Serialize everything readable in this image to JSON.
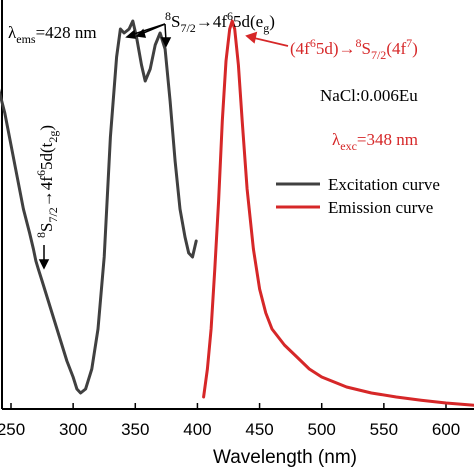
{
  "chart_data": {
    "type": "line",
    "xlabel": "Wavelength (nm)",
    "xlim": [
      240,
      630
    ],
    "ylim": [
      0,
      1.0
    ],
    "grid": false,
    "legend_position": "center-right",
    "x_ticks": [
      "250",
      "300",
      "350",
      "400",
      "450",
      "500",
      "550",
      "600"
    ],
    "series": [
      {
        "name": "Excitation curve",
        "color": "#404040",
        "points": [
          [
            240,
            0.8
          ],
          [
            245,
            0.74
          ],
          [
            250,
            0.66
          ],
          [
            255,
            0.58
          ],
          [
            260,
            0.5
          ],
          [
            265,
            0.44
          ],
          [
            268,
            0.4
          ],
          [
            270,
            0.37
          ],
          [
            272,
            0.35
          ],
          [
            275,
            0.32
          ],
          [
            280,
            0.27
          ],
          [
            285,
            0.22
          ],
          [
            290,
            0.17
          ],
          [
            295,
            0.12
          ],
          [
            300,
            0.08
          ],
          [
            303,
            0.05
          ],
          [
            306,
            0.04
          ],
          [
            310,
            0.05
          ],
          [
            315,
            0.1
          ],
          [
            320,
            0.2
          ],
          [
            325,
            0.38
          ],
          [
            330,
            0.68
          ],
          [
            335,
            0.88
          ],
          [
            338,
            0.95
          ],
          [
            341,
            0.94
          ],
          [
            345,
            0.95
          ],
          [
            348,
            0.97
          ],
          [
            351,
            0.93
          ],
          [
            355,
            0.86
          ],
          [
            358,
            0.82
          ],
          [
            362,
            0.85
          ],
          [
            366,
            0.91
          ],
          [
            370,
            0.94
          ],
          [
            374,
            0.9
          ],
          [
            378,
            0.77
          ],
          [
            382,
            0.62
          ],
          [
            386,
            0.5
          ],
          [
            390,
            0.43
          ],
          [
            393,
            0.39
          ],
          [
            396,
            0.38
          ],
          [
            399,
            0.42
          ]
        ]
      },
      {
        "name": "Emission curve",
        "color": "#d62728",
        "points": [
          [
            405,
            0.03
          ],
          [
            408,
            0.1
          ],
          [
            411,
            0.2
          ],
          [
            414,
            0.35
          ],
          [
            417,
            0.52
          ],
          [
            420,
            0.72
          ],
          [
            423,
            0.87
          ],
          [
            426,
            0.95
          ],
          [
            428,
            0.97
          ],
          [
            430,
            0.95
          ],
          [
            433,
            0.86
          ],
          [
            436,
            0.72
          ],
          [
            440,
            0.55
          ],
          [
            445,
            0.4
          ],
          [
            450,
            0.3
          ],
          [
            455,
            0.24
          ],
          [
            460,
            0.2
          ],
          [
            470,
            0.16
          ],
          [
            480,
            0.13
          ],
          [
            490,
            0.1
          ],
          [
            500,
            0.08
          ],
          [
            520,
            0.055
          ],
          [
            540,
            0.04
          ],
          [
            560,
            0.03
          ],
          [
            580,
            0.022
          ],
          [
            600,
            0.015
          ],
          [
            620,
            0.01
          ],
          [
            630,
            0.008
          ]
        ]
      }
    ]
  },
  "annotations": {
    "ems_lambda": "λ",
    "ems_sub": "ems",
    "ems_value": "=428 nm",
    "eg_pre": "8",
    "eg_s": "S",
    "eg_sub": "7/2",
    "eg_arrow": "→4f",
    "eg_sup6": "6",
    "eg_5d": "5d(e",
    "eg_g": "g",
    "eg_close": ")",
    "t2g_pre": "8",
    "t2g_s": "S",
    "t2g_sub": "7/2",
    "t2g_arrow": "→4f",
    "t2g_sup6": "6",
    "t2g_5d": "5d(t",
    "t2g_sub2g": "2g",
    "t2g_close": ")",
    "em_open": "(4f",
    "em_sup6": "6",
    "em_5d": "5d)",
    "em_arrow": "→",
    "em_sup8": "8",
    "em_s": "S",
    "em_sub": "7/2",
    "em_tail": "(4f",
    "em_sup7": "7",
    "em_close": ")",
    "sample": "NaCl:0.006Eu",
    "exc_lambda": "λ",
    "exc_sub": "exc",
    "exc_value": "=348 nm"
  },
  "legend": {
    "excitation": "Excitation curve",
    "emission": "Emission curve"
  }
}
